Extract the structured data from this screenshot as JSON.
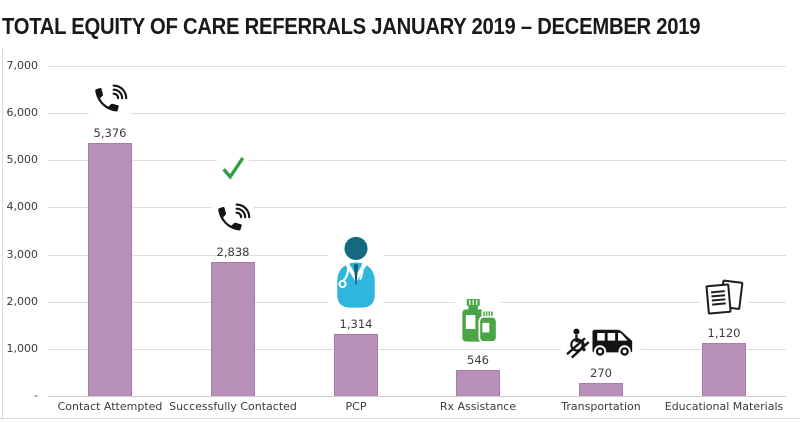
{
  "title": "TOTAL EQUITY OF CARE REFERRALS JANUARY 2019 – DECEMBER 2019",
  "chart_data": {
    "type": "bar",
    "title": "TOTAL EQUITY OF CARE REFERRALS JANUARY 2019 – DECEMBER 2019",
    "categories": [
      "Contact Attempted",
      "Successfully Contacted",
      "PCP",
      "Rx Assistance",
      "Transportation",
      "Educational Materials"
    ],
    "values": [
      5376,
      2838,
      1314,
      546,
      270,
      1120
    ],
    "value_labels": [
      "5,376",
      "2,838",
      "1,314",
      "546",
      "270",
      "1,120"
    ],
    "xlabel": "",
    "ylabel": "",
    "ylim": [
      0,
      7000
    ],
    "ytick_interval": 1000,
    "ytick_labels": [
      "7,000",
      "6,000",
      "5,000",
      "4,000",
      "3,000",
      "2,000",
      "1,000",
      "-"
    ],
    "grid": true,
    "legend": "none",
    "bar_color": "#b78fb8",
    "bar_border_color": "#a77ea8",
    "grid_color": "#dcdcdc",
    "axis_line_color": "#c9c9c9",
    "title_color": "#1a1a1a",
    "text_color": "#3b3b3b",
    "column_icons": [
      [
        "phone-call-icon"
      ],
      [
        "checkmark-icon",
        "phone-call-icon"
      ],
      [
        "doctor-icon"
      ],
      [
        "medicine-bottles-icon"
      ],
      [
        "wheelchair-van-icon"
      ],
      [
        "documents-icon"
      ]
    ],
    "icon_colors": {
      "phone": "#141414",
      "checkmark": "#2f9e44",
      "doctor_head": "#15697f",
      "doctor_body": "#2eb6dd",
      "doctor_tie": "#0f5e73",
      "medicine": "#4aa546",
      "van": "#141414",
      "documents": "#1d1d1d"
    }
  }
}
